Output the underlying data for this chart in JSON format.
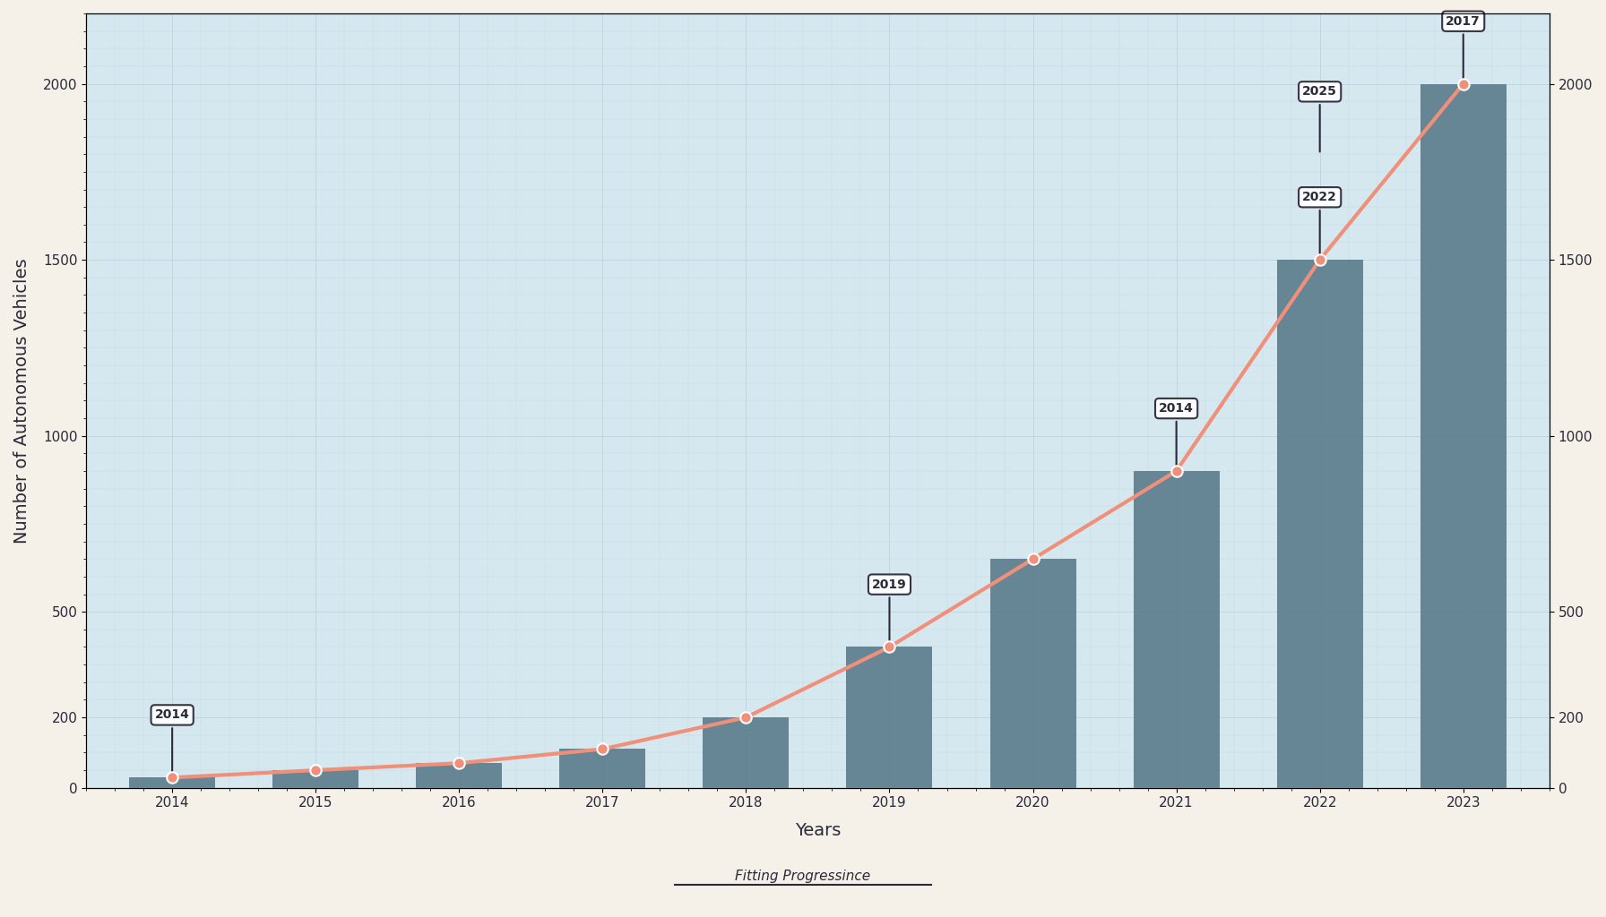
{
  "xlabel": "Years",
  "ylabel": "Number of Autonomous Vehicles",
  "years": [
    2014,
    2015,
    2016,
    2017,
    2018,
    2019,
    2020,
    2021,
    2022,
    2023
  ],
  "bar_values": [
    29,
    50,
    70,
    110,
    200,
    400,
    650,
    900,
    1500,
    2000
  ],
  "line_values": [
    29,
    50,
    70,
    110,
    200,
    400,
    650,
    900,
    1500,
    2000
  ],
  "bar_color": "#5a7b8c",
  "line_color": "#f0907a",
  "line_marker_color": "#f0907a",
  "background_color": "#f5f0e8",
  "plot_bg_color": "#d6e8ef",
  "grid_color": "#b0cad4",
  "ylim": [
    0,
    2200
  ],
  "yticks": [
    0,
    200,
    500,
    1000,
    1500,
    2000
  ],
  "title_fontsize": 18,
  "label_fontsize": 14,
  "tick_fontsize": 11,
  "callout_data": [
    [
      0,
      29,
      "2014"
    ],
    [
      5,
      400,
      "2019"
    ],
    [
      7,
      900,
      "2014"
    ],
    [
      8,
      1500,
      "2022"
    ],
    [
      8,
      1800,
      "2025"
    ],
    [
      9,
      2000,
      "2017"
    ]
  ],
  "subtitle_text": "Fitting Progressince"
}
